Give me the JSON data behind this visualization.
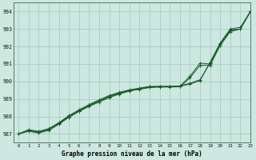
{
  "title": "Graphe pression niveau de la mer (hPa)",
  "bg_color": "#cce8e0",
  "grid_color": "#aaccc4",
  "line_color": "#1a5c2a",
  "xlim": [
    -0.5,
    23
  ],
  "ylim": [
    986.5,
    994.5
  ],
  "yticks": [
    987,
    988,
    989,
    990,
    991,
    992,
    993,
    994
  ],
  "xticks": [
    0,
    1,
    2,
    3,
    4,
    5,
    6,
    7,
    8,
    9,
    10,
    11,
    12,
    13,
    14,
    15,
    16,
    17,
    18,
    19,
    20,
    21,
    22,
    23
  ],
  "series1": [
    987.0,
    987.2,
    987.1,
    987.3,
    987.6,
    988.0,
    988.35,
    988.65,
    988.9,
    989.15,
    989.35,
    989.5,
    989.6,
    989.7,
    989.72,
    989.72,
    989.72,
    989.85,
    990.05,
    991.1,
    992.2,
    993.0,
    993.1,
    994.0
  ],
  "series2": [
    987.0,
    987.25,
    987.15,
    987.3,
    987.65,
    988.05,
    988.38,
    988.68,
    988.95,
    989.2,
    989.38,
    989.52,
    989.62,
    989.72,
    989.72,
    989.72,
    989.75,
    989.9,
    990.1,
    991.05,
    992.15,
    992.9,
    993.0,
    994.0
  ],
  "series3": [
    987.0,
    987.2,
    987.1,
    987.25,
    987.6,
    988.0,
    988.3,
    988.6,
    988.88,
    989.12,
    989.32,
    989.48,
    989.58,
    989.68,
    989.7,
    989.7,
    989.72,
    990.3,
    991.05,
    991.0,
    992.15,
    992.95,
    993.0,
    994.0
  ],
  "series4": [
    987.0,
    987.15,
    987.05,
    987.2,
    987.55,
    987.95,
    988.28,
    988.58,
    988.82,
    989.08,
    989.28,
    989.45,
    989.55,
    989.65,
    989.68,
    989.68,
    989.7,
    990.2,
    990.92,
    990.92,
    992.05,
    992.85,
    993.0,
    994.0
  ]
}
